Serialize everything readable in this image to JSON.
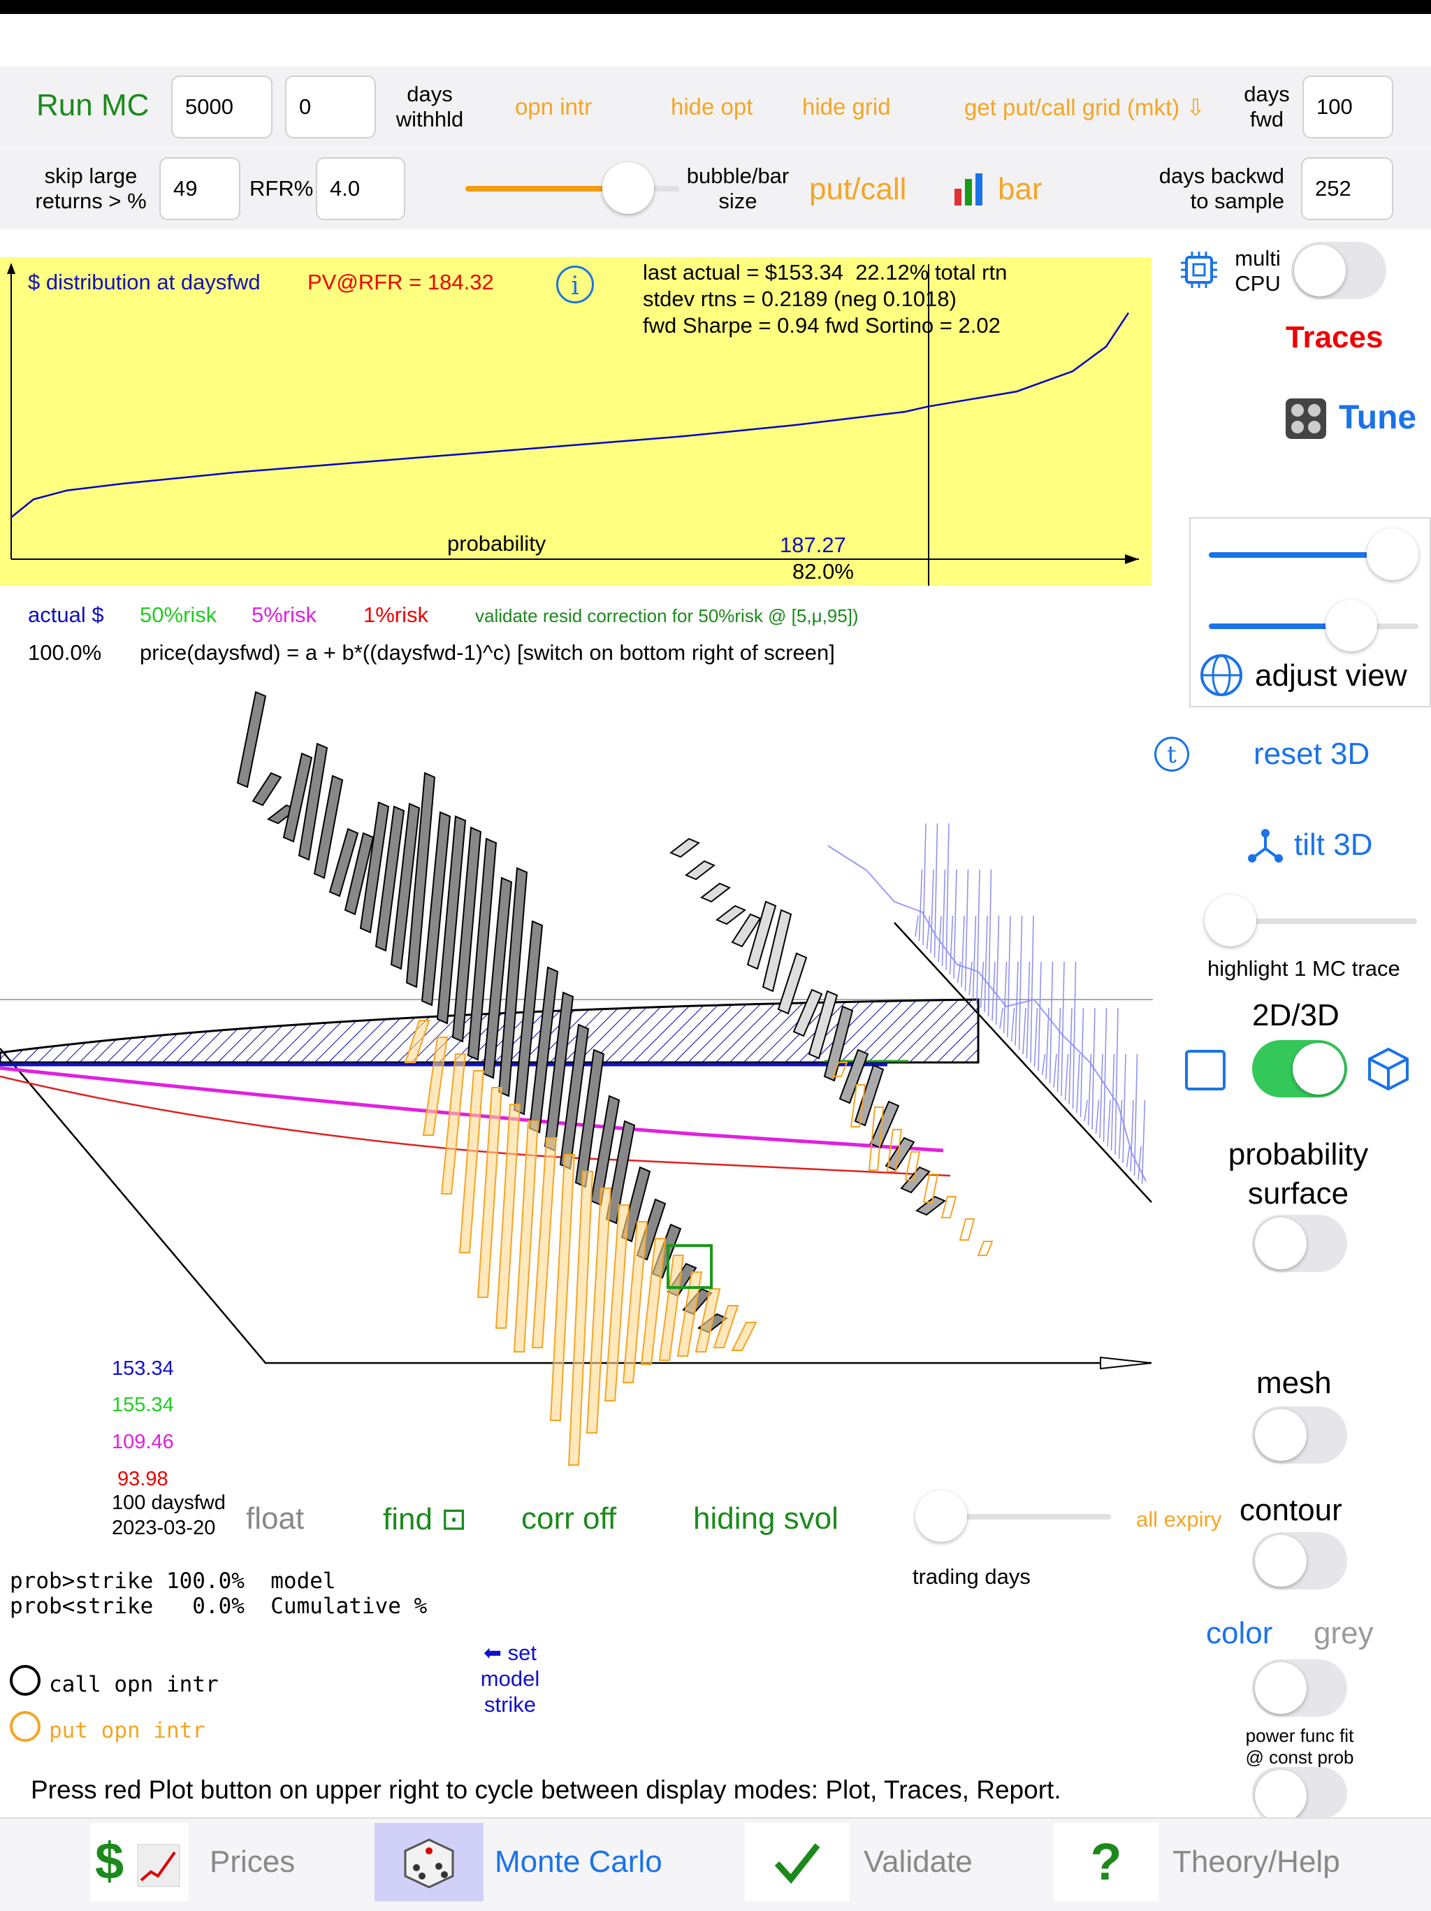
{
  "toolbar1": {
    "run_mc": "Run MC",
    "traces_value": "5000",
    "withhold_value": "0",
    "days_withhold_label": "days\nwithhld",
    "opn_intr": "opn intr",
    "hide_opt": "hide opt",
    "hide_grid": "hide grid",
    "get_grid": "get put/call grid (mkt) ⇩",
    "days_fwd_label": "days\nfwd",
    "days_fwd_value": "100"
  },
  "toolbar2": {
    "skip_label": "skip large\nreturns > %",
    "skip_value": "49",
    "rfr_label": "RFR%",
    "rfr_value": "4.0",
    "slider_value": 0.76,
    "bubble_label": "bubble/bar\nsize",
    "putcall": "put/call",
    "bar": "bar",
    "days_back_label": "days backwd\nto sample",
    "days_back_value": "252"
  },
  "dist_chart": {
    "title": "$ distribution at daysfwd",
    "pv": "PV@RFR = 184.32",
    "stats1": "last actual = $153.34  22.12% total rtn",
    "stats2": "stdev rtns = 0.2189 (neg 0.1018)",
    "stats3": "fwd Sharpe = 0.94 fwd Sortino = 2.02",
    "xlabel": "probability",
    "cursor_price": "187.27",
    "cursor_prob": "82.0%"
  },
  "chart_data": {
    "type": "line",
    "title": "$ distribution at daysfwd",
    "xlabel": "probability",
    "ylabel": "",
    "series": [
      {
        "x": [
          0,
          0.02,
          0.05,
          0.1,
          0.2,
          0.3,
          0.4,
          0.5,
          0.6,
          0.7,
          0.8,
          0.82,
          0.9,
          0.95,
          0.98,
          1.0
        ],
        "y": [
          138,
          146,
          150,
          153,
          158,
          162,
          166,
          170,
          174,
          179,
          185,
          187.27,
          194,
          203,
          214,
          229
        ]
      }
    ],
    "color": "#0000cc",
    "background": "#ffff80"
  },
  "legend": {
    "actual": "actual $",
    "r50": "50%risk",
    "r5": "5%risk",
    "r1": "1%risk",
    "validate": "validate resid correction for 50%risk @ [5,μ,95])",
    "pct": "100.0%",
    "formula": "price(daysfwd) = a + b*((daysfwd-1)^c) [switch on bottom right of screen]"
  },
  "values": {
    "v1": "153.34",
    "v2": "155.34",
    "v3": "109.46",
    "v4": "93.98",
    "days": "100 daysfwd",
    "date": "2023-03-20"
  },
  "controls": {
    "float": "float",
    "find": "find ⊡",
    "corr": "corr off",
    "svol": "hiding svol",
    "all_expiry": "all expiry",
    "trading_days": "trading days",
    "prob_gt": "prob>strike 100.0%  model",
    "prob_lt": "prob<strike   0.0%  Cumulative %",
    "set_model": "⬅ set\nmodel\nstrike",
    "call": "call opn intr",
    "put": "put opn intr",
    "press": "Press red Plot button on upper right to cycle between display modes:  Plot, Traces, Report."
  },
  "side": {
    "multi_cpu": "multi\nCPU",
    "traces": "Traces",
    "tune": "Tune",
    "adjust_view": "adjust view",
    "reset3d": "reset 3D",
    "tilt3d": "tilt 3D",
    "highlight": "highlight 1 MC trace",
    "mode2d3d": "2D/3D",
    "prob_surface": "probability\nsurface",
    "mesh": "mesh",
    "contour": "contour",
    "color": "color",
    "grey": "grey",
    "power": "power func fit\n@ const prob",
    "view_slider1": 0.88,
    "view_slider2": 0.68
  },
  "tabs": {
    "prices": "Prices",
    "mc": "Monte Carlo",
    "validate": "Validate",
    "help": "Theory/Help"
  }
}
